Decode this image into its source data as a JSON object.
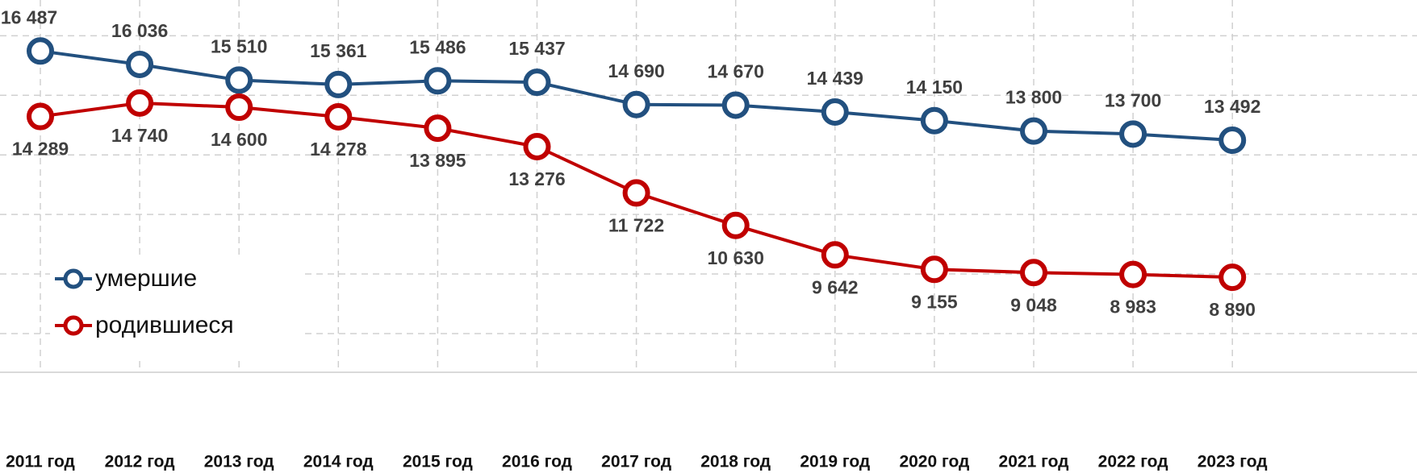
{
  "chart_data": {
    "type": "line",
    "categories": [
      "2011 год",
      "2012 год",
      "2013 год",
      "2014 год",
      "2015 год",
      "2016 год",
      "2017 год",
      "2018 год",
      "2019 год",
      "2020 год",
      "2021 год",
      "2022 год",
      "2023 год"
    ],
    "series": [
      {
        "name": "умершие",
        "color": "#22507f",
        "values": [
          16487,
          16036,
          15510,
          15361,
          15486,
          15437,
          14690,
          14670,
          14439,
          14150,
          13800,
          13700,
          13492
        ],
        "value_labels": [
          "16 487",
          "16 036",
          "15 510",
          "15 361",
          "15 486",
          "15 437",
          "14 690",
          "14 670",
          "14 439",
          "14 150",
          "13 800",
          "13 700",
          "13 492"
        ]
      },
      {
        "name": "родившиеся",
        "color": "#c00000",
        "values": [
          14289,
          14740,
          14600,
          14278,
          13895,
          13276,
          11722,
          10630,
          9642,
          9155,
          9048,
          8983,
          8890
        ],
        "value_labels": [
          "14 289",
          "14 740",
          "14 600",
          "14 278",
          "13 895",
          "13 276",
          "11 722",
          "10 630",
          "9 642",
          "9 155",
          "9 048",
          "8 983",
          "8 890"
        ]
      }
    ],
    "ylim": [
      5700,
      18200
    ],
    "yticks": [
      7000,
      9000,
      11000,
      13000,
      15000,
      17000
    ],
    "grid": true,
    "legend": "lower left"
  }
}
